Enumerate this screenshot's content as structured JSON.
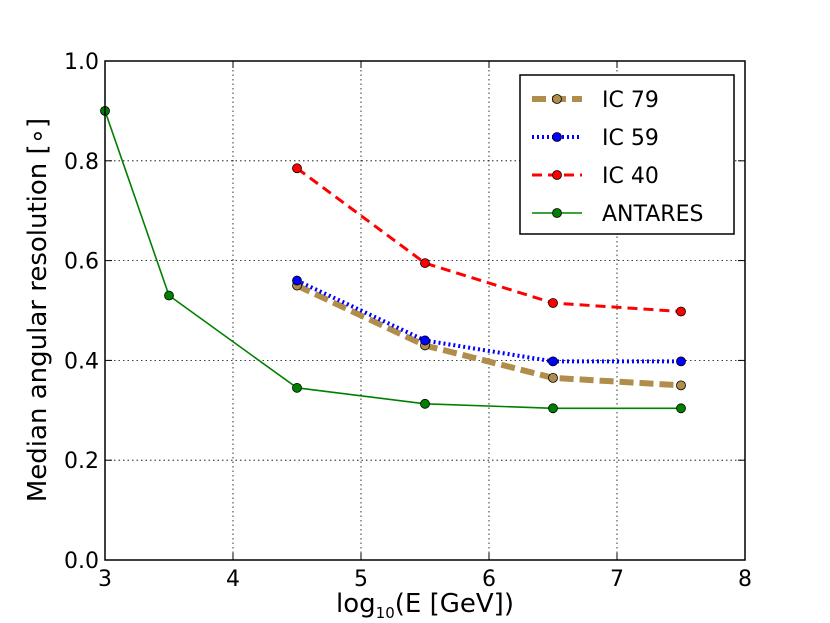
{
  "chart_data": {
    "type": "line",
    "title": "",
    "xlabel_prefix": "log",
    "xlabel_sub": "10",
    "xlabel_suffix": "(E [GeV])",
    "ylabel": "Median angular resolution [∘]",
    "xlim": [
      3,
      8
    ],
    "ylim": [
      0.0,
      1.0
    ],
    "xticks": [
      3,
      4,
      5,
      6,
      7,
      8
    ],
    "xtick_labels": [
      "3",
      "4",
      "5",
      "6",
      "7",
      "8"
    ],
    "yticks": [
      0.0,
      0.2,
      0.4,
      0.6,
      0.8,
      1.0
    ],
    "ytick_labels": [
      "0.0",
      "0.2",
      "0.4",
      "0.6",
      "0.8",
      "1.0"
    ],
    "grid": true,
    "legend_position": "top-right",
    "series": [
      {
        "name": "IC 79",
        "color": "#b08d4a",
        "marker_color": "#b08d4a",
        "style": "dashed-thick",
        "x": [
          4.5,
          5.5,
          6.5,
          7.5
        ],
        "y": [
          0.55,
          0.43,
          0.365,
          0.35
        ]
      },
      {
        "name": "IC 59",
        "color": "#0000ff",
        "marker_color": "#0000ff",
        "style": "dotted",
        "x": [
          4.5,
          5.5,
          6.5,
          7.5
        ],
        "y": [
          0.56,
          0.44,
          0.398,
          0.398
        ]
      },
      {
        "name": "IC 40",
        "color": "#ff0000",
        "marker_color": "#ff0000",
        "style": "dashed",
        "x": [
          4.5,
          5.5,
          6.5,
          7.5
        ],
        "y": [
          0.785,
          0.595,
          0.515,
          0.498
        ]
      },
      {
        "name": "ANTARES",
        "color": "#008000",
        "marker_color": "#008000",
        "style": "solid",
        "x": [
          3.0,
          3.5,
          4.5,
          5.5,
          6.5,
          7.5
        ],
        "y": [
          0.9,
          0.53,
          0.345,
          0.313,
          0.304,
          0.304
        ]
      }
    ]
  }
}
